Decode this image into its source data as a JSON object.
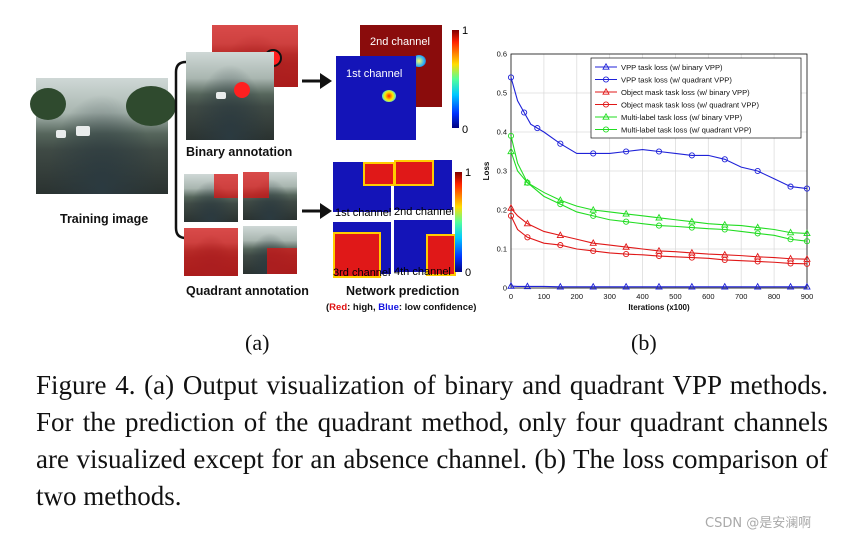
{
  "figure": {
    "left_panel": {
      "training_image_label": "Training image",
      "binary_annotation_label": "Binary annotation",
      "quadrant_annotation_label": "Quadrant annotation",
      "network_prediction_label": "Network prediction",
      "legend": {
        "red_word": "Red",
        "red_rest": ": high, ",
        "blue_word": "Blue",
        "blue_rest": ": low confidence)",
        "open_paren": "("
      },
      "channels": {
        "first": "1st channel",
        "second": "2nd channel",
        "third": "3rd channel",
        "fourth": "4th channel"
      },
      "colorbar_max": "1",
      "colorbar_min": "0",
      "colors": {
        "high": "#ff0000",
        "low": "#0000ff"
      }
    },
    "sub_a": "(a)",
    "sub_b": "(b)",
    "caption": "Figure 4.  (a) Output visualization of binary and quadrant VPP methods. For the prediction of the quadrant method, only four quadrant channels are visualized except for an absence channel. (b) The loss comparison of two methods.",
    "watermark": "CSDN @是安澜啊"
  },
  "chart_data": {
    "type": "line",
    "title": "",
    "xlabel": "Iterations (x100)",
    "ylabel": "Loss",
    "xlim": [
      0,
      900
    ],
    "ylim": [
      0,
      0.6
    ],
    "xticks": [
      "0",
      "100",
      "200",
      "300",
      "400",
      "500",
      "600",
      "700",
      "800",
      "900"
    ],
    "yticks": [
      "0",
      "0.1",
      "0.2",
      "0.3",
      "0.4",
      "0.5",
      "0.6"
    ],
    "legend_position": "top-right",
    "series": [
      {
        "name": "VPP task loss (w/ binary VPP)",
        "color": "#1f22d8",
        "marker": "triangle",
        "x": [
          0,
          20,
          50,
          100,
          150,
          200,
          250,
          300,
          350,
          400,
          450,
          500,
          550,
          600,
          650,
          700,
          750,
          800,
          850,
          900
        ],
        "y": [
          0.005,
          0.004,
          0.004,
          0.004,
          0.003,
          0.003,
          0.003,
          0.003,
          0.003,
          0.003,
          0.003,
          0.003,
          0.003,
          0.003,
          0.003,
          0.003,
          0.003,
          0.003,
          0.003,
          0.003
        ]
      },
      {
        "name": "VPP task loss (w/ quadrant VPP)",
        "color": "#1f22d8",
        "marker": "circle",
        "x": [
          0,
          20,
          40,
          60,
          80,
          100,
          150,
          200,
          250,
          300,
          350,
          400,
          450,
          500,
          550,
          600,
          650,
          700,
          750,
          800,
          850,
          900
        ],
        "y": [
          0.54,
          0.48,
          0.45,
          0.42,
          0.41,
          0.4,
          0.37,
          0.345,
          0.345,
          0.345,
          0.35,
          0.355,
          0.35,
          0.345,
          0.34,
          0.34,
          0.33,
          0.31,
          0.3,
          0.28,
          0.26,
          0.255
        ]
      },
      {
        "name": "Object mask task loss (w/ binary VPP)",
        "color": "#e01818",
        "marker": "triangle",
        "x": [
          0,
          20,
          50,
          100,
          150,
          200,
          250,
          300,
          350,
          400,
          450,
          500,
          550,
          600,
          650,
          700,
          750,
          800,
          850,
          900
        ],
        "y": [
          0.205,
          0.185,
          0.165,
          0.145,
          0.135,
          0.125,
          0.115,
          0.11,
          0.105,
          0.1,
          0.095,
          0.093,
          0.09,
          0.087,
          0.085,
          0.083,
          0.08,
          0.078,
          0.075,
          0.074
        ]
      },
      {
        "name": "Object mask task loss (w/ quadrant VPP)",
        "color": "#e01818",
        "marker": "circle",
        "x": [
          0,
          20,
          50,
          100,
          150,
          200,
          250,
          300,
          350,
          400,
          450,
          500,
          550,
          600,
          650,
          700,
          750,
          800,
          850,
          900
        ],
        "y": [
          0.185,
          0.15,
          0.13,
          0.115,
          0.11,
          0.1,
          0.095,
          0.09,
          0.087,
          0.085,
          0.082,
          0.08,
          0.078,
          0.076,
          0.072,
          0.07,
          0.068,
          0.066,
          0.063,
          0.062
        ]
      },
      {
        "name": "Multi-label task loss (w/ binary VPP)",
        "color": "#22dd22",
        "marker": "triangle",
        "x": [
          0,
          20,
          50,
          100,
          150,
          200,
          250,
          300,
          350,
          400,
          450,
          500,
          550,
          600,
          650,
          700,
          750,
          800,
          850,
          900
        ],
        "y": [
          0.35,
          0.3,
          0.27,
          0.245,
          0.225,
          0.21,
          0.2,
          0.195,
          0.19,
          0.185,
          0.18,
          0.175,
          0.17,
          0.165,
          0.162,
          0.16,
          0.155,
          0.15,
          0.142,
          0.14
        ]
      },
      {
        "name": "Multi-label task loss (w/ quadrant VPP)",
        "color": "#22dd22",
        "marker": "circle",
        "x": [
          0,
          20,
          50,
          100,
          150,
          200,
          250,
          300,
          350,
          400,
          450,
          500,
          550,
          600,
          650,
          700,
          750,
          800,
          850,
          900
        ],
        "y": [
          0.39,
          0.32,
          0.27,
          0.235,
          0.215,
          0.195,
          0.185,
          0.175,
          0.17,
          0.165,
          0.16,
          0.158,
          0.155,
          0.152,
          0.15,
          0.145,
          0.14,
          0.135,
          0.125,
          0.12
        ]
      }
    ]
  }
}
